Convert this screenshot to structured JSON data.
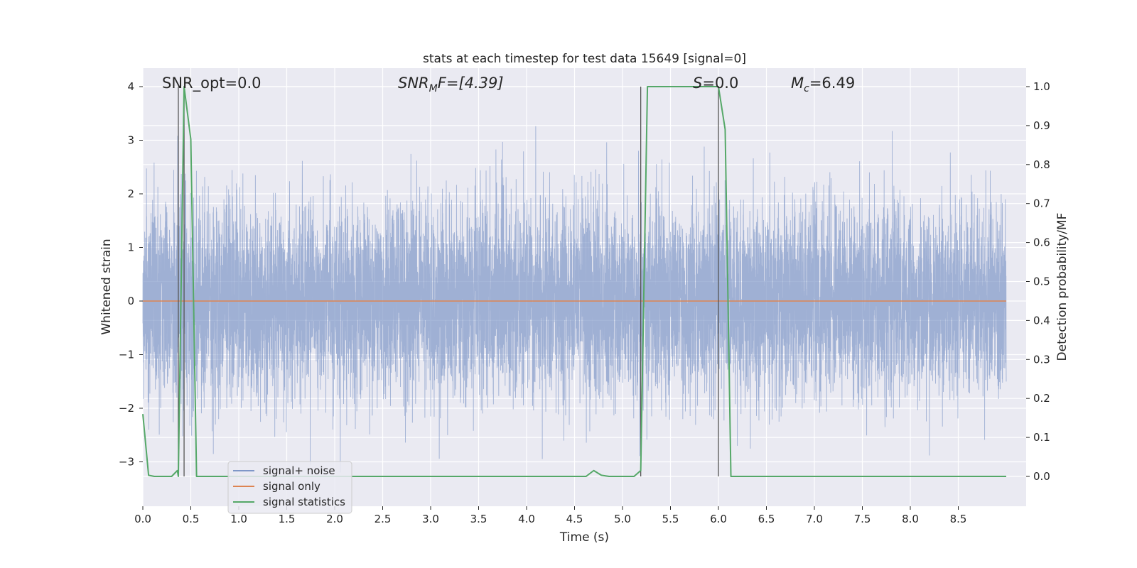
{
  "chart_data": {
    "type": "line",
    "title": "stats at each timestep for test data 15649 [signal=0]",
    "xlabel": "Time (s)",
    "ylabel_left": "Whitened strain",
    "ylabel_right": "Detection probability/MF",
    "xlim": [
      0,
      9.0
    ],
    "ylim_left": [
      -3.65,
      4.35
    ],
    "ylim_right": [
      -0.05,
      1.05
    ],
    "xticks": [
      "0.0",
      "0.5",
      "1.0",
      "1.5",
      "2.0",
      "2.5",
      "3.0",
      "3.5",
      "4.0",
      "4.5",
      "5.0",
      "5.5",
      "6.0",
      "6.5",
      "7.0",
      "7.5",
      "8.0",
      "8.5"
    ],
    "yticks_left": [
      "−3",
      "−2",
      "−1",
      "0",
      "1",
      "2",
      "3",
      "4"
    ],
    "yticks_right": [
      "0.0",
      "0.1",
      "0.2",
      "0.3",
      "0.4",
      "0.5",
      "0.6",
      "0.7",
      "0.8",
      "0.9",
      "1.0"
    ],
    "grid": true,
    "legend_position": "lower-left",
    "legend": [
      "signal+ noise",
      "signal only",
      "signal statistics"
    ],
    "annotations": {
      "snr_opt": "SNR_opt=0.0",
      "snr_mf_main": "SNR",
      "snr_mf_sub": "M",
      "snr_mf_rest": "F=[4.39]",
      "s_main": "S",
      "s_rest": "=0.0",
      "mc_main": "M",
      "mc_sub": "c",
      "mc_rest": "=6.49"
    },
    "vertical_lines_x": [
      0.37,
      0.43,
      5.19,
      6.0
    ],
    "series": [
      {
        "name": "signal+ noise",
        "color": "#7f97c8",
        "description": "whitened strain noise, envelope roughly ±2, peaks to about ±4",
        "sample_rate_hz": 2048,
        "noise_std": 0.9
      },
      {
        "name": "signal only",
        "color": "#dd8452",
        "x": [
          0,
          9.0
        ],
        "y": [
          0,
          0
        ]
      },
      {
        "name": "signal statistics",
        "color": "#55a868",
        "axis": "right",
        "x": [
          0,
          0.06,
          0.12,
          0.2,
          0.3,
          0.36,
          0.37,
          0.43,
          0.5,
          0.56,
          0.62,
          4.5,
          4.62,
          4.7,
          4.78,
          4.86,
          5.0,
          5.12,
          5.19,
          5.26,
          5.35,
          6.0,
          6.07,
          6.13,
          6.2,
          9.0
        ],
        "y": [
          0.16,
          0.003,
          0.0,
          0.0,
          0.0,
          0.015,
          0.0,
          1.0,
          0.865,
          0.0,
          0.0,
          0.0,
          0.0,
          0.015,
          0.003,
          0.0,
          0.0,
          0.0,
          0.015,
          1.0,
          1.0,
          1.0,
          0.89,
          0.0,
          0.0,
          0.0
        ]
      }
    ]
  }
}
